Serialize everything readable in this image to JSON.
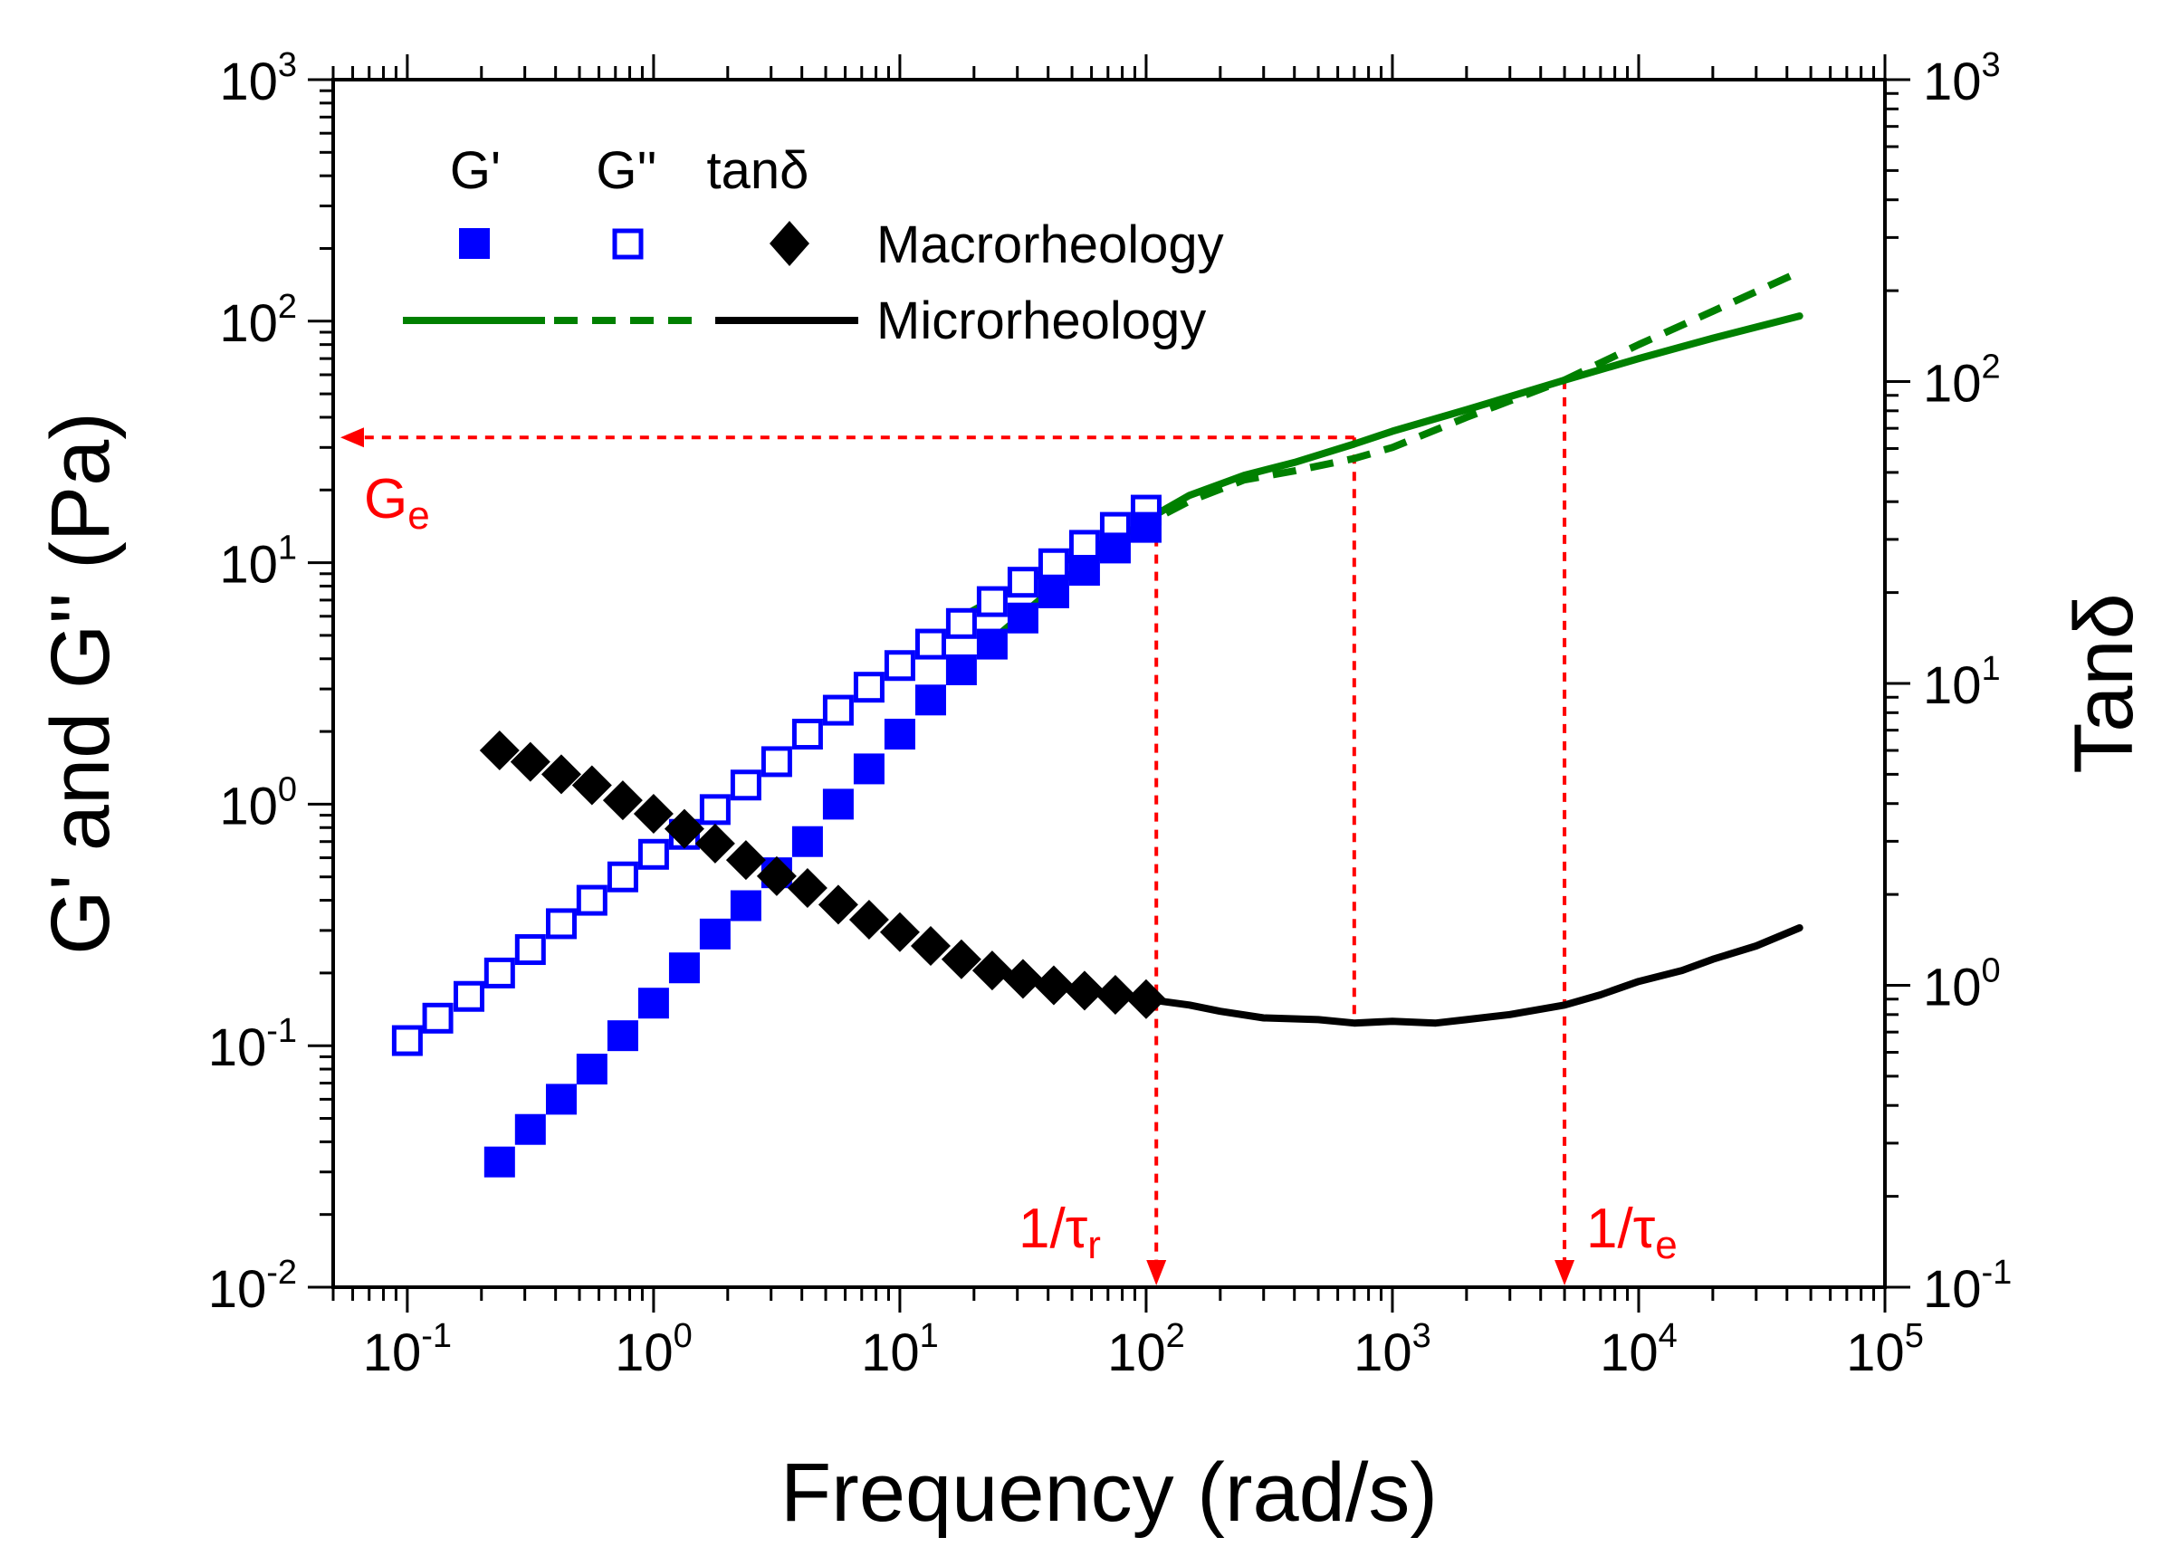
{
  "chart_data": {
    "type": "scatter",
    "xlabel": "Frequency (rad/s)",
    "ylabel_left": "G' and G'' (Pa)",
    "ylabel_right": "Tanδ",
    "xscale": "log",
    "yscale_left": "log",
    "yscale_right": "log",
    "xlim": [
      0.05,
      100000
    ],
    "ylim_left": [
      0.01,
      1000
    ],
    "ylim_right": [
      0.1,
      1000
    ],
    "x_ticks": [
      {
        "base": "10",
        "exp": "-1",
        "value": 0.1
      },
      {
        "base": "10",
        "exp": "0",
        "value": 1
      },
      {
        "base": "10",
        "exp": "1",
        "value": 10
      },
      {
        "base": "10",
        "exp": "2",
        "value": 100
      },
      {
        "base": "10",
        "exp": "3",
        "value": 1000
      },
      {
        "base": "10",
        "exp": "4",
        "value": 10000
      },
      {
        "base": "10",
        "exp": "5",
        "value": 100000
      }
    ],
    "y_left_ticks": [
      {
        "base": "10",
        "exp": "-2",
        "value": 0.01
      },
      {
        "base": "10",
        "exp": "-1",
        "value": 0.1
      },
      {
        "base": "10",
        "exp": "0",
        "value": 1
      },
      {
        "base": "10",
        "exp": "1",
        "value": 10
      },
      {
        "base": "10",
        "exp": "2",
        "value": 100
      },
      {
        "base": "10",
        "exp": "3",
        "value": 1000
      }
    ],
    "y_right_ticks": [
      {
        "base": "10",
        "exp": "-1",
        "value": 0.1
      },
      {
        "base": "10",
        "exp": "0",
        "value": 1
      },
      {
        "base": "10",
        "exp": "1",
        "value": 10
      },
      {
        "base": "10",
        "exp": "2",
        "value": 100
      },
      {
        "base": "10",
        "exp": "3",
        "value": 1000
      }
    ],
    "legend": {
      "headers": [
        "G'",
        "G''",
        "tanδ"
      ],
      "rows": [
        "Macrorheology",
        "Microrheology"
      ]
    },
    "colors": {
      "g_prime": "#0000ff",
      "g_double_prime": "#0000ff",
      "tan_delta": "#000000",
      "micro_moduli": "#008000",
      "micro_tan": "#000000",
      "annotation": "#ff0000"
    },
    "series": [
      {
        "name": "G'",
        "group": "Macrorheology",
        "axis": "left",
        "marker": "filled-square",
        "x": [
          0.237,
          0.316,
          0.422,
          0.562,
          0.75,
          1.0,
          1.334,
          1.778,
          2.371,
          3.162,
          4.217,
          5.623,
          7.499,
          10.0,
          13.34,
          17.78,
          23.71,
          31.62,
          42.17,
          56.23,
          74.99,
          100.0
        ],
        "y": [
          0.033,
          0.045,
          0.06,
          0.08,
          0.11,
          0.15,
          0.21,
          0.29,
          0.38,
          0.52,
          0.7,
          1.0,
          1.4,
          1.95,
          2.7,
          3.6,
          4.6,
          5.9,
          7.5,
          9.3,
          11.5,
          14.0
        ]
      },
      {
        "name": "G''",
        "group": "Macrorheology",
        "axis": "left",
        "marker": "open-square",
        "x": [
          0.1,
          0.133,
          0.178,
          0.237,
          0.316,
          0.422,
          0.562,
          0.75,
          1.0,
          1.334,
          1.778,
          2.371,
          3.162,
          4.217,
          5.623,
          7.499,
          10.0,
          13.34,
          17.78,
          23.71,
          31.62,
          42.17,
          56.23,
          74.99,
          100.0
        ],
        "y": [
          0.105,
          0.13,
          0.16,
          0.2,
          0.25,
          0.32,
          0.4,
          0.5,
          0.62,
          0.75,
          0.95,
          1.2,
          1.5,
          1.95,
          2.45,
          3.05,
          3.75,
          4.6,
          5.6,
          6.9,
          8.3,
          9.9,
          11.8,
          14.0,
          16.5
        ]
      },
      {
        "name": "tanδ",
        "group": "Macrorheology",
        "axis": "right",
        "marker": "filled-diamond",
        "x": [
          0.237,
          0.316,
          0.422,
          0.562,
          0.75,
          1.0,
          1.334,
          1.778,
          2.371,
          3.162,
          4.217,
          5.623,
          7.499,
          10.0,
          13.34,
          17.78,
          23.71,
          31.62,
          42.17,
          56.23,
          74.99,
          100.0
        ],
        "y": [
          6.0,
          5.5,
          5.0,
          4.6,
          4.1,
          3.7,
          3.3,
          2.95,
          2.6,
          2.3,
          2.1,
          1.85,
          1.65,
          1.5,
          1.35,
          1.22,
          1.12,
          1.05,
          1.0,
          0.96,
          0.93,
          0.9
        ]
      },
      {
        "name": "G'",
        "group": "Microrheology",
        "axis": "left",
        "style": "solid",
        "x": [
          25,
          40,
          60,
          100,
          150,
          250,
          400,
          700,
          1000,
          2000,
          5000,
          10000,
          20000,
          45000
        ],
        "y": [
          5.0,
          7.5,
          10.5,
          15.0,
          19.0,
          23.0,
          26.0,
          31.0,
          35.0,
          43.0,
          57.0,
          70.0,
          85.0,
          105.0
        ]
      },
      {
        "name": "G''",
        "group": "Microrheology",
        "axis": "left",
        "style": "dashed",
        "x": [
          18,
          30,
          50,
          100,
          150,
          250,
          400,
          700,
          1000,
          2000,
          5000,
          10000,
          20000,
          45000
        ],
        "y": [
          6.0,
          8.0,
          10.5,
          14.5,
          18.0,
          22.0,
          24.0,
          27.0,
          30.0,
          40.0,
          57.0,
          80.0,
          110.0,
          160.0
        ]
      },
      {
        "name": "tanδ",
        "group": "Microrheology",
        "axis": "right",
        "style": "solid",
        "x": [
          100,
          150,
          200,
          300,
          500,
          700,
          1000,
          1500,
          2000,
          3000,
          5000,
          7000,
          10000,
          15000,
          20000,
          30000,
          45000
        ],
        "y": [
          0.9,
          0.86,
          0.82,
          0.78,
          0.77,
          0.75,
          0.76,
          0.75,
          0.77,
          0.8,
          0.86,
          0.93,
          1.03,
          1.12,
          1.22,
          1.35,
          1.55
        ]
      }
    ],
    "annotations": {
      "ge_label": "G",
      "ge_sub": "e",
      "ge_value": 33,
      "ge_x_end": 700,
      "tau_r_label": "1/τ",
      "tau_r_sub": "r",
      "tau_r_x": 110,
      "tau_e_label": "1/τ",
      "tau_e_sub": "e",
      "tau_e_x": 5000,
      "crossover_drop_x": 700
    }
  }
}
